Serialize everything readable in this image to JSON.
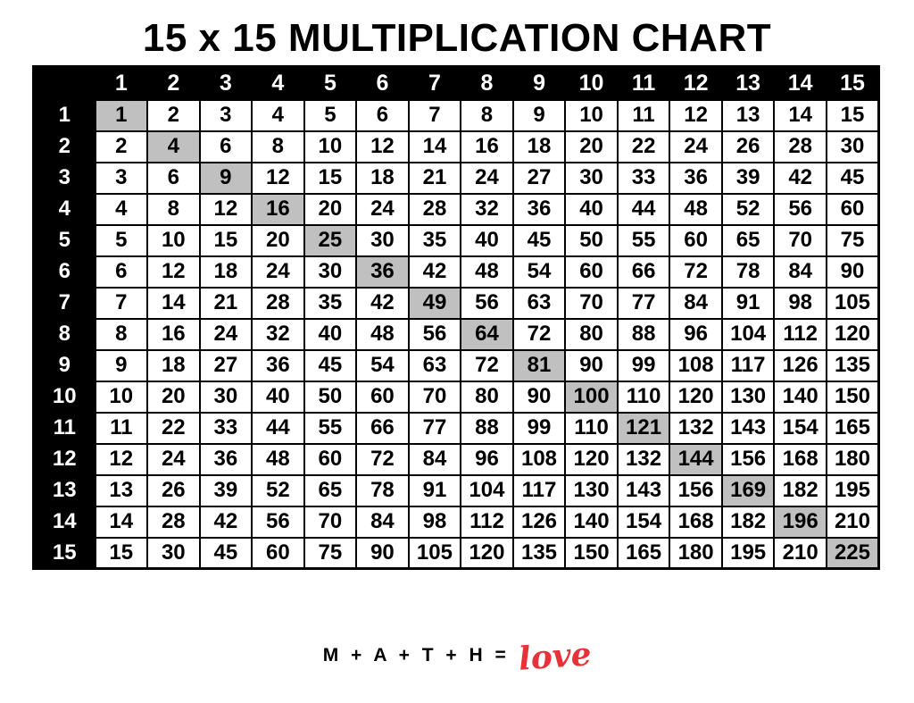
{
  "title": "15 x 15 MULTIPLICATION CHART",
  "colors": {
    "black": "#000000",
    "white": "#ffffff",
    "diagonal_gray": "#c0c0c0",
    "love_red": "#e8323a"
  },
  "footer": {
    "equation": "M + A + T + H =",
    "love_word": "love"
  },
  "chart_data": {
    "type": "table",
    "title": "15 x 15 MULTIPLICATION CHART",
    "col_headers": [
      "1",
      "2",
      "3",
      "4",
      "5",
      "6",
      "7",
      "8",
      "9",
      "10",
      "11",
      "12",
      "13",
      "14",
      "15"
    ],
    "row_headers": [
      "1",
      "2",
      "3",
      "4",
      "5",
      "6",
      "7",
      "8",
      "9",
      "10",
      "11",
      "12",
      "13",
      "14",
      "15"
    ],
    "grid": [
      [
        1,
        2,
        3,
        4,
        5,
        6,
        7,
        8,
        9,
        10,
        11,
        12,
        13,
        14,
        15
      ],
      [
        2,
        4,
        6,
        8,
        10,
        12,
        14,
        16,
        18,
        20,
        22,
        24,
        26,
        28,
        30
      ],
      [
        3,
        6,
        9,
        12,
        15,
        18,
        21,
        24,
        27,
        30,
        33,
        36,
        39,
        42,
        45
      ],
      [
        4,
        8,
        12,
        16,
        20,
        24,
        28,
        32,
        36,
        40,
        44,
        48,
        52,
        56,
        60
      ],
      [
        5,
        10,
        15,
        20,
        25,
        30,
        35,
        40,
        45,
        50,
        55,
        60,
        65,
        70,
        75
      ],
      [
        6,
        12,
        18,
        24,
        30,
        36,
        42,
        48,
        54,
        60,
        66,
        72,
        78,
        84,
        90
      ],
      [
        7,
        14,
        21,
        28,
        35,
        42,
        49,
        56,
        63,
        70,
        77,
        84,
        91,
        98,
        105
      ],
      [
        8,
        16,
        24,
        32,
        40,
        48,
        56,
        64,
        72,
        80,
        88,
        96,
        104,
        112,
        120
      ],
      [
        9,
        18,
        27,
        36,
        45,
        54,
        63,
        72,
        81,
        90,
        99,
        108,
        117,
        126,
        135
      ],
      [
        10,
        20,
        30,
        40,
        50,
        60,
        70,
        80,
        90,
        100,
        110,
        120,
        130,
        140,
        150
      ],
      [
        11,
        22,
        33,
        44,
        55,
        66,
        77,
        88,
        99,
        110,
        121,
        132,
        143,
        154,
        165
      ],
      [
        12,
        24,
        36,
        48,
        60,
        72,
        84,
        96,
        108,
        120,
        132,
        144,
        156,
        168,
        180
      ],
      [
        13,
        26,
        39,
        52,
        65,
        78,
        91,
        104,
        117,
        130,
        143,
        156,
        169,
        182,
        195
      ],
      [
        14,
        28,
        42,
        56,
        70,
        84,
        98,
        112,
        126,
        140,
        154,
        168,
        182,
        196,
        210
      ],
      [
        15,
        30,
        45,
        60,
        75,
        90,
        105,
        120,
        135,
        150,
        165,
        180,
        195,
        210,
        225
      ]
    ],
    "layout_hints": {
      "header_row_background": "black with white numerals",
      "header_column_background": "black with white numerals",
      "highlight": "main diagonal cells (n x n squares) shaded gray",
      "grid_lines": "on, black"
    }
  }
}
